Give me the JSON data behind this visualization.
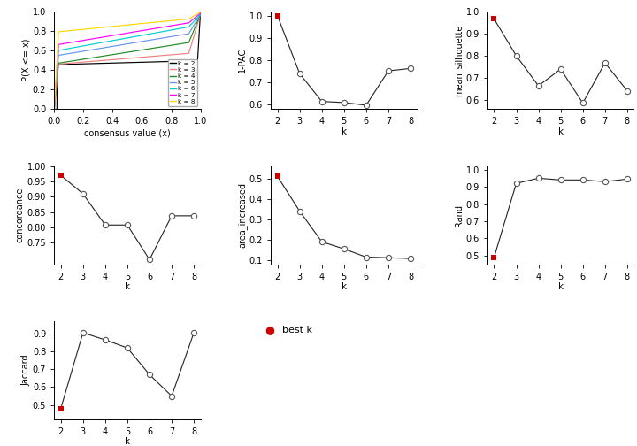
{
  "ecdf_colors": [
    "#000000",
    "#f08080",
    "#228B22",
    "#6495ED",
    "#00CED1",
    "#FF00FF",
    "#FFD700"
  ],
  "ecdf_labels": [
    "k = 2",
    "k = 3",
    "k = 4",
    "k = 5",
    "k = 6",
    "k = 7",
    "k = 8"
  ],
  "k_values": [
    2,
    3,
    4,
    5,
    6,
    7,
    8
  ],
  "pac1_values": [
    1.0,
    0.74,
    0.615,
    0.61,
    0.598,
    0.752,
    0.763
  ],
  "mean_sil_values": [
    0.965,
    0.8,
    0.665,
    0.74,
    0.588,
    0.768,
    0.643
  ],
  "concordance_values": [
    0.97,
    0.91,
    0.808,
    0.808,
    0.695,
    0.838,
    0.838
  ],
  "area_values": [
    0.51,
    0.34,
    0.19,
    0.155,
    0.115,
    0.112,
    0.108
  ],
  "rand_values": [
    0.49,
    0.92,
    0.95,
    0.94,
    0.94,
    0.93,
    0.945
  ],
  "jaccard_values": [
    0.48,
    0.905,
    0.865,
    0.82,
    0.67,
    0.55,
    0.905
  ],
  "best_k_color": "#cc0000",
  "line_color": "#222222",
  "open_marker_face": "#ffffff",
  "open_marker_edge": "#555555"
}
